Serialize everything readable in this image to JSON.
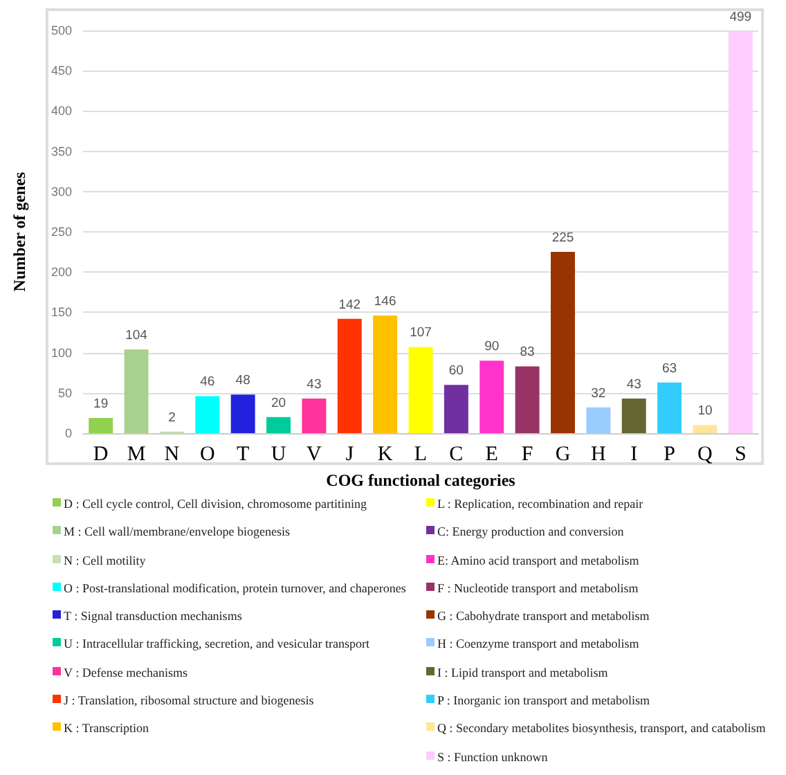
{
  "chart_data": {
    "type": "bar",
    "xlabel": "COG functional categories",
    "ylabel": "Number of genes",
    "categories": [
      "D",
      "M",
      "N",
      "O",
      "T",
      "U",
      "V",
      "J",
      "K",
      "L",
      "C",
      "E",
      "F",
      "G",
      "H",
      "I",
      "P",
      "Q",
      "S"
    ],
    "values": [
      19,
      104,
      2,
      46,
      48,
      20,
      43,
      142,
      146,
      107,
      60,
      90,
      83,
      225,
      32,
      43,
      63,
      10,
      499
    ],
    "colors": [
      "#92d050",
      "#a9d18e",
      "#c5e0b4",
      "#00ffff",
      "#2222dd",
      "#00cc99",
      "#ff3399",
      "#ff3300",
      "#ffc000",
      "#ffff00",
      "#7030a0",
      "#ff33cc",
      "#993366",
      "#993300",
      "#99ccff",
      "#666633",
      "#33ccff",
      "#ffe699",
      "#ffccff"
    ],
    "ylim": [
      0,
      500
    ],
    "yticks": [
      0,
      50,
      100,
      150,
      200,
      250,
      300,
      350,
      400,
      450,
      500
    ],
    "grid": "y",
    "data_labels": true,
    "annotations": [
      "D : Cell cycle control, Cell division, chromosome partitining",
      "M : Cell wall/membrane/envelope biogenesis",
      "N : Cell motility",
      "O : Post-translational modification, protein turnover, and chaperones",
      "T : Signal transduction mechanisms",
      "U : Intracellular trafficking, secretion, and vesicular transport",
      "V : Defense mechanisms",
      "J : Translation, ribosomal structure and biogenesis",
      "K : Transcription",
      "L : Replication, recombination and repair",
      "C: Energy production and conversion",
      "E: Amino acid transport and metabolism",
      "F : Nucleotide transport and metabolism",
      "G : Cabohydrate transport and metabolism",
      "H : Coenzyme transport and metabolism",
      "I : Lipid transport and metabolism",
      "P : Inorganic ion transport and metabolism",
      "Q : Secondary metabolites biosynthesis, transport, and catabolism",
      "S : Function unknown"
    ]
  }
}
